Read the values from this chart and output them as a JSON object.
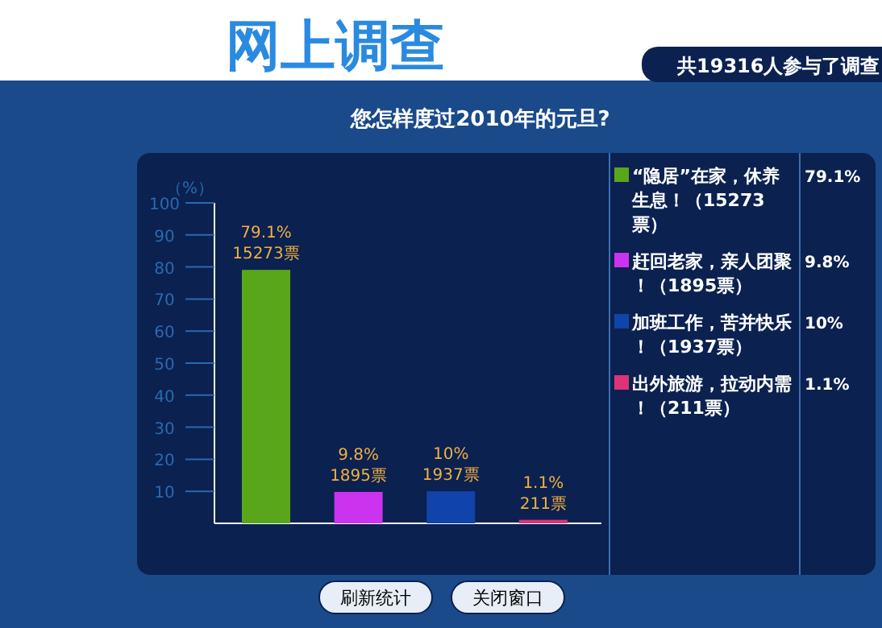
{
  "chart_data": {
    "type": "bar",
    "title": "您怎样度过2010年的元旦?",
    "subtitle": "网上调查",
    "ylabel": "（%）",
    "categories": [
      null,
      null,
      null,
      null
    ],
    "series": [
      {
        "name": "“隐居”在家，休养生息！（15273票）",
        "color": "#5aa61a",
        "values": [
          79.1,
          null,
          null,
          null
        ],
        "value_labels": [
          "79.1%\n15273票",
          null,
          null,
          null
        ]
      },
      {
        "name": "赶回老家，亲人团聚！（1895票）",
        "color": "#cc33ee",
        "values": [
          null,
          9.8,
          null,
          null
        ],
        "value_labels": [
          null,
          "9.8%\n1895票",
          null,
          null
        ]
      },
      {
        "name": "加班工作，苦并快乐！（1937票）",
        "color": "#1144aa",
        "values": [
          null,
          null,
          10,
          null
        ],
        "value_labels": [
          null,
          null,
          "10%\n1937票",
          null
        ]
      },
      {
        "name": "出外旅游，拉动内需！（211票）",
        "color": "#dd3377",
        "values": [
          null,
          null,
          null,
          1.1
        ],
        "value_labels": [
          null,
          null,
          null,
          "1.1%\n211票"
        ]
      }
    ],
    "ylim": [
      0,
      100
    ],
    "yticks": [
      10,
      20,
      30,
      40,
      50,
      60,
      70,
      80,
      90,
      100
    ],
    "legend": "right",
    "grid": false,
    "annotations": [
      "共19316人参与了调查",
      "刷新统计",
      "关闭窗口",
      "79.1%",
      "9.8%",
      "10%",
      "1.1%"
    ]
  }
}
